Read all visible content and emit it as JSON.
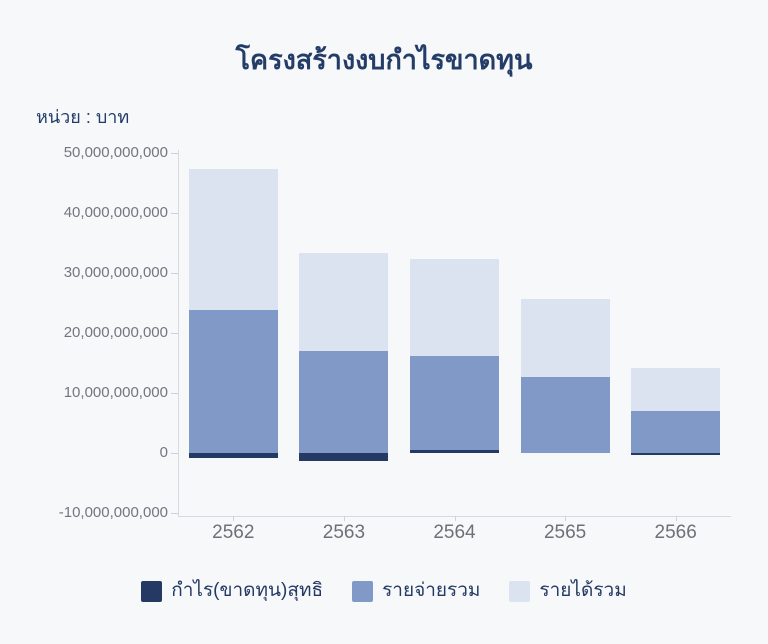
{
  "header": {
    "title": "โครงสร้างงบกำไรขาดทุน",
    "unit_label": "หน่วย : บาท"
  },
  "chart_data": {
    "type": "bar",
    "title": "โครงสร้างงบกำไรขาดทุน",
    "unit": "หน่วย : บาท",
    "stacked": true,
    "grid": false,
    "legend_position": "bottom",
    "categories": [
      "2562",
      "2563",
      "2564",
      "2565",
      "2566"
    ],
    "series": [
      {
        "name": "กำไร(ขาดทุน)สุทธิ",
        "color": "#243a64",
        "values": [
          -900000000,
          -1400000000,
          500000000,
          0,
          -400000000
        ]
      },
      {
        "name": "รายจ่ายรวม",
        "color": "#8099c7",
        "values": [
          23900000000,
          17000000000,
          16100000000,
          12600000000,
          7000000000
        ]
      },
      {
        "name": "รายได้รวม",
        "color": "#dbe3f0",
        "values": [
          23500000000,
          16300000000,
          16200000000,
          13000000000,
          7200000000
        ]
      }
    ],
    "y_axis": {
      "min": -10000000000,
      "max": 50000000000,
      "tick_step": 10000000000,
      "tick_labels": [
        "50,000,000,000",
        "40,000,000,000",
        "30,000,000,000",
        "20,000,000,000",
        "10,000,000,000",
        "0",
        "-10,000,000,000"
      ]
    }
  }
}
